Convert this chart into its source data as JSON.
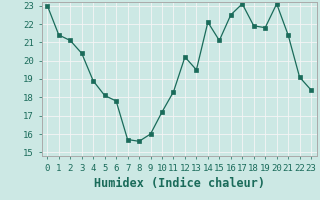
{
  "x": [
    0,
    1,
    2,
    3,
    4,
    5,
    6,
    7,
    8,
    9,
    10,
    11,
    12,
    13,
    14,
    15,
    16,
    17,
    18,
    19,
    20,
    21,
    22,
    23
  ],
  "y": [
    23.0,
    21.4,
    21.1,
    20.4,
    18.9,
    18.1,
    17.8,
    15.7,
    15.6,
    16.0,
    17.2,
    18.3,
    20.2,
    19.5,
    22.1,
    21.1,
    22.5,
    23.1,
    21.9,
    21.8,
    23.1,
    21.4,
    19.1,
    18.4
  ],
  "xlabel": "Humidex (Indice chaleur)",
  "ylim": [
    15,
    23
  ],
  "xlim": [
    -0.5,
    23.5
  ],
  "yticks": [
    15,
    16,
    17,
    18,
    19,
    20,
    21,
    22,
    23
  ],
  "xticks": [
    0,
    1,
    2,
    3,
    4,
    5,
    6,
    7,
    8,
    9,
    10,
    11,
    12,
    13,
    14,
    15,
    16,
    17,
    18,
    19,
    20,
    21,
    22,
    23
  ],
  "line_color": "#1a6b5a",
  "bg_color": "#cce8e4",
  "grid_color": "#f5f5f5",
  "tick_label_fontsize": 6.5,
  "xlabel_fontsize": 8.5
}
